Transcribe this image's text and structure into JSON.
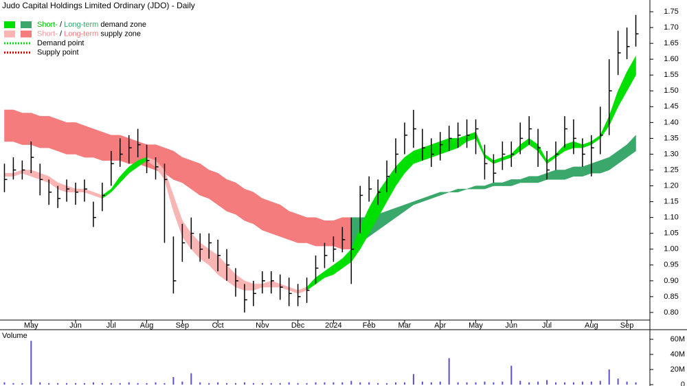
{
  "chart_data": {
    "type": "ohlc",
    "title": "Judo Capital Holdings Limited Ordinary (JDO) - Daily",
    "categories": [
      null,
      null,
      null,
      "May",
      null,
      null,
      null,
      null,
      "Jun",
      null,
      null,
      null,
      "Jul",
      null,
      null,
      null,
      "Aug",
      null,
      null,
      null,
      "Sep",
      null,
      null,
      null,
      "Oct",
      null,
      null,
      null,
      null,
      "Nov",
      null,
      null,
      null,
      "Dec",
      null,
      null,
      null,
      "2024",
      null,
      null,
      null,
      "Feb",
      null,
      null,
      null,
      "Mar",
      null,
      null,
      null,
      "Apr",
      null,
      null,
      null,
      "May",
      null,
      null,
      null,
      "Jun",
      null,
      null,
      null,
      "Jul",
      null,
      null,
      null,
      null,
      "Aug",
      null,
      null,
      null,
      "Sep",
      null
    ],
    "close": [
      1.22,
      1.25,
      1.25,
      1.29,
      1.22,
      1.18,
      1.16,
      1.19,
      1.18,
      1.19,
      1.1,
      1.17,
      1.27,
      1.3,
      1.32,
      1.33,
      1.28,
      1.26,
      1.22,
      0.9,
      1.02,
      1.05,
      1.0,
      1.02,
      0.98,
      0.95,
      0.9,
      0.84,
      0.86,
      0.9,
      0.9,
      0.88,
      0.86,
      0.85,
      0.87,
      0.94,
      0.98,
      1.0,
      1.03,
      1.0,
      1.17,
      1.19,
      1.18,
      1.23,
      1.3,
      1.36,
      1.38,
      1.32,
      1.3,
      1.33,
      1.35,
      1.36,
      1.36,
      1.38,
      1.27,
      1.24,
      1.3,
      1.3,
      1.35,
      1.38,
      1.32,
      1.25,
      1.3,
      1.38,
      1.35,
      1.3,
      1.32,
      1.36,
      1.5,
      1.62,
      1.64,
      1.68
    ],
    "high": [
      1.27,
      1.29,
      1.28,
      1.34,
      1.27,
      1.22,
      1.2,
      1.22,
      1.21,
      1.22,
      1.15,
      1.21,
      1.31,
      1.35,
      1.36,
      1.38,
      1.33,
      1.29,
      1.27,
      1.04,
      1.08,
      1.1,
      1.05,
      1.05,
      1.03,
      1.0,
      0.94,
      0.89,
      0.9,
      0.93,
      0.93,
      0.92,
      0.91,
      0.89,
      0.91,
      0.98,
      1.02,
      1.04,
      1.07,
      1.1,
      1.2,
      1.23,
      1.22,
      1.28,
      1.35,
      1.4,
      1.44,
      1.38,
      1.35,
      1.37,
      1.39,
      1.4,
      1.41,
      1.41,
      1.33,
      1.3,
      1.34,
      1.34,
      1.4,
      1.42,
      1.38,
      1.31,
      1.34,
      1.42,
      1.41,
      1.35,
      1.36,
      1.45,
      1.6,
      1.69,
      1.7,
      1.74
    ],
    "low": [
      1.18,
      1.22,
      1.22,
      1.24,
      1.17,
      1.14,
      1.13,
      1.15,
      1.14,
      1.15,
      1.07,
      1.12,
      1.2,
      1.26,
      1.27,
      1.29,
      1.24,
      1.22,
      1.02,
      0.86,
      0.96,
      1.0,
      0.96,
      0.97,
      0.93,
      0.9,
      0.85,
      0.8,
      0.82,
      0.86,
      0.86,
      0.84,
      0.82,
      0.82,
      0.83,
      0.89,
      0.94,
      0.96,
      0.99,
      0.89,
      1.05,
      1.15,
      1.14,
      1.18,
      1.24,
      1.3,
      1.32,
      1.28,
      1.26,
      1.28,
      1.31,
      1.32,
      1.32,
      1.3,
      1.22,
      1.21,
      1.25,
      1.26,
      1.3,
      1.33,
      1.26,
      1.22,
      1.25,
      1.32,
      1.3,
      1.26,
      1.23,
      1.3,
      1.36,
      1.55,
      1.6,
      1.64
    ],
    "bar_color": "#000000",
    "zones": [
      {
        "color": "#f47c7c",
        "upper": [
          1.44,
          1.44,
          1.43,
          1.43,
          1.42,
          1.42,
          1.41,
          1.4,
          1.4,
          1.39,
          1.38,
          1.37,
          1.36,
          1.36,
          1.35,
          1.34,
          1.33,
          1.33,
          1.32,
          1.31,
          1.29,
          1.28,
          1.27,
          1.25,
          1.24,
          1.22,
          1.21,
          1.19,
          1.18,
          1.16,
          1.15,
          1.14,
          1.12,
          1.11,
          1.1,
          1.1,
          1.09,
          1.09,
          1.1,
          1.1,
          null,
          null,
          null,
          null,
          null,
          null,
          null,
          null,
          null,
          null,
          null,
          null,
          null,
          null,
          null,
          null,
          null,
          null,
          null,
          null,
          null,
          null,
          null,
          null,
          null,
          null,
          null,
          null,
          null,
          null,
          null,
          null
        ],
        "lower": [
          1.34,
          1.34,
          1.33,
          1.33,
          1.32,
          1.32,
          1.31,
          1.3,
          1.3,
          1.29,
          1.29,
          1.28,
          1.28,
          1.28,
          1.27,
          1.27,
          1.26,
          1.25,
          1.24,
          1.22,
          1.21,
          1.19,
          1.17,
          1.16,
          1.14,
          1.12,
          1.11,
          1.09,
          1.08,
          1.06,
          1.05,
          1.04,
          1.03,
          1.02,
          1.02,
          1.01,
          1.01,
          1.01,
          1.0,
          1.0,
          null,
          null,
          null,
          null,
          null,
          null,
          null,
          null,
          null,
          null,
          null,
          null,
          null,
          null,
          null,
          null,
          null,
          null,
          null,
          null,
          null,
          null,
          null,
          null,
          null,
          null,
          null,
          null,
          null,
          null,
          null,
          null
        ]
      },
      {
        "color": "#3aa86a",
        "upper": [
          null,
          null,
          null,
          null,
          null,
          null,
          null,
          null,
          null,
          null,
          null,
          null,
          null,
          null,
          null,
          null,
          null,
          null,
          null,
          null,
          null,
          null,
          null,
          null,
          null,
          null,
          null,
          null,
          null,
          null,
          null,
          null,
          null,
          null,
          null,
          null,
          null,
          null,
          null,
          1.1,
          1.1,
          1.1,
          1.11,
          1.12,
          1.13,
          1.14,
          1.15,
          1.16,
          1.17,
          1.18,
          1.18,
          1.19,
          1.19,
          1.2,
          1.2,
          1.21,
          1.21,
          1.22,
          1.22,
          1.23,
          1.23,
          1.24,
          1.25,
          1.25,
          1.26,
          1.26,
          1.27,
          1.28,
          1.29,
          1.31,
          1.33,
          1.36
        ],
        "lower": [
          null,
          null,
          null,
          null,
          null,
          null,
          null,
          null,
          null,
          null,
          null,
          null,
          null,
          null,
          null,
          null,
          null,
          null,
          null,
          null,
          null,
          null,
          null,
          null,
          null,
          null,
          null,
          null,
          null,
          null,
          null,
          null,
          null,
          null,
          null,
          null,
          null,
          null,
          null,
          1.0,
          1.02,
          1.04,
          1.06,
          1.08,
          1.1,
          1.12,
          1.14,
          1.15,
          1.16,
          1.17,
          1.18,
          1.18,
          1.19,
          1.19,
          1.19,
          1.2,
          1.2,
          1.2,
          1.21,
          1.21,
          1.21,
          1.22,
          1.22,
          1.22,
          1.23,
          1.23,
          1.24,
          1.24,
          1.25,
          1.27,
          1.29,
          1.31
        ]
      },
      {
        "color": "#f9b4b4",
        "upper": [
          1.24,
          1.24,
          1.25,
          1.25,
          1.24,
          1.23,
          1.21,
          1.2,
          1.19,
          1.19,
          1.18,
          1.17,
          null,
          null,
          null,
          null,
          1.29,
          1.28,
          1.25,
          1.17,
          1.09,
          1.05,
          1.02,
          1.0,
          0.98,
          0.95,
          0.92,
          0.9,
          0.89,
          0.89,
          0.9,
          0.89,
          0.88,
          0.87,
          0.88,
          null,
          null,
          null,
          null,
          null,
          null,
          null,
          null,
          null,
          null,
          null,
          null,
          null,
          null,
          null,
          null,
          null,
          null,
          null,
          null,
          null,
          null,
          null,
          null,
          null,
          null,
          null,
          null,
          null,
          null,
          null,
          null,
          null,
          null,
          null,
          null,
          null
        ],
        "lower": [
          1.23,
          1.23,
          1.24,
          1.23,
          1.22,
          1.21,
          1.19,
          1.18,
          1.18,
          1.18,
          1.17,
          1.16,
          null,
          null,
          null,
          null,
          1.28,
          1.26,
          1.22,
          1.12,
          1.04,
          1.0,
          0.97,
          0.95,
          0.92,
          0.9,
          0.88,
          0.87,
          0.87,
          0.88,
          0.88,
          0.88,
          0.87,
          0.86,
          0.87,
          null,
          null,
          null,
          null,
          null,
          null,
          null,
          null,
          null,
          null,
          null,
          null,
          null,
          null,
          null,
          null,
          null,
          null,
          null,
          null,
          null,
          null,
          null,
          null,
          null,
          null,
          null,
          null,
          null,
          null,
          null,
          null,
          null,
          null,
          null,
          null,
          null
        ]
      },
      {
        "color": "#00e000",
        "upper": [
          null,
          null,
          null,
          null,
          null,
          null,
          null,
          null,
          null,
          null,
          null,
          1.17,
          1.19,
          1.23,
          1.26,
          1.28,
          1.29,
          null,
          null,
          null,
          null,
          null,
          null,
          null,
          null,
          null,
          null,
          null,
          null,
          null,
          null,
          null,
          null,
          null,
          0.88,
          0.91,
          0.93,
          0.95,
          0.97,
          1.0,
          1.07,
          1.13,
          1.18,
          1.22,
          1.26,
          1.29,
          1.31,
          1.32,
          1.33,
          1.34,
          1.35,
          1.35,
          1.36,
          1.37,
          1.3,
          1.28,
          1.29,
          1.3,
          1.33,
          1.35,
          1.33,
          1.28,
          1.3,
          1.33,
          1.34,
          1.33,
          1.34,
          1.36,
          1.42,
          1.5,
          1.56,
          1.61
        ],
        "lower": [
          null,
          null,
          null,
          null,
          null,
          null,
          null,
          null,
          null,
          null,
          null,
          1.16,
          1.18,
          1.21,
          1.24,
          1.26,
          1.28,
          null,
          null,
          null,
          null,
          null,
          null,
          null,
          null,
          null,
          null,
          null,
          null,
          null,
          null,
          null,
          null,
          null,
          0.87,
          0.89,
          0.91,
          0.92,
          0.94,
          0.96,
          1.0,
          1.05,
          1.1,
          1.15,
          1.2,
          1.24,
          1.27,
          1.28,
          1.29,
          1.3,
          1.31,
          1.32,
          1.34,
          1.35,
          1.29,
          1.27,
          1.28,
          1.29,
          1.31,
          1.33,
          1.31,
          1.27,
          1.29,
          1.31,
          1.32,
          1.32,
          1.33,
          1.35,
          1.39,
          1.45,
          1.5,
          1.55
        ]
      }
    ],
    "legend": [
      {
        "style": "box",
        "swatches": [
          "#00e000",
          "#3aa86a"
        ],
        "parts": [
          "Short-",
          " / ",
          "Long-term",
          " demand zone"
        ],
        "part_colors": [
          "#00c000",
          "#000000",
          "#3aa86a",
          "#000000"
        ]
      },
      {
        "style": "box",
        "swatches": [
          "#f9b4b4",
          "#f47c7c"
        ],
        "parts": [
          "Short-",
          " / ",
          "Long-term",
          " supply zone"
        ],
        "part_colors": [
          "#f49a9a",
          "#000000",
          "#f47c7c",
          "#000000"
        ]
      },
      {
        "style": "dots",
        "swatches": [
          "#00e000"
        ],
        "parts": [
          "Demand point"
        ],
        "part_colors": [
          "#000000"
        ]
      },
      {
        "style": "dots",
        "swatches": [
          "#e00000"
        ],
        "parts": [
          "Supply point"
        ],
        "part_colors": [
          "#000000"
        ]
      }
    ],
    "ylim": [
      0.776,
      1.787
    ],
    "yticks": [
      {
        "value": 0.8,
        "label": "0.80"
      },
      {
        "value": 0.85,
        "label": "0.85"
      },
      {
        "value": 0.9,
        "label": "0.90"
      },
      {
        "value": 0.95,
        "label": "0.95"
      },
      {
        "value": 1.0,
        "label": "1.00"
      },
      {
        "value": 1.05,
        "label": "1.05"
      },
      {
        "value": 1.1,
        "label": "1.10"
      },
      {
        "value": 1.15,
        "label": "1.15"
      },
      {
        "value": 1.2,
        "label": "1.20"
      },
      {
        "value": 1.25,
        "label": "1.25"
      },
      {
        "value": 1.3,
        "label": "1.30"
      },
      {
        "value": 1.35,
        "label": "1.35"
      },
      {
        "value": 1.4,
        "label": "1.40"
      },
      {
        "value": 1.45,
        "label": "1.45"
      },
      {
        "value": 1.5,
        "label": "1.50"
      },
      {
        "value": 1.55,
        "label": "1.55"
      },
      {
        "value": 1.6,
        "label": "1.60"
      },
      {
        "value": 1.65,
        "label": "1.65"
      },
      {
        "value": 1.7,
        "label": "1.70"
      },
      {
        "value": 1.75,
        "label": "1.75"
      }
    ],
    "volume": {
      "label": "Volume",
      "color": "#5a4fcf",
      "values": [
        3,
        2,
        2,
        58,
        3,
        2,
        2,
        2,
        2,
        2,
        3,
        2,
        2,
        2,
        3,
        2,
        2,
        3,
        2,
        10,
        4,
        15,
        3,
        2,
        3,
        2,
        2,
        3,
        2,
        2,
        2,
        2,
        3,
        2,
        2,
        3,
        3,
        3,
        3,
        5,
        3,
        3,
        2,
        2,
        3,
        3,
        14,
        4,
        3,
        4,
        35,
        3,
        3,
        3,
        4,
        3,
        4,
        25,
        5,
        3,
        4,
        6,
        3,
        3,
        3,
        4,
        4,
        5,
        20,
        8,
        4,
        3
      ],
      "ylim": [
        0,
        70
      ],
      "yticks": [
        0,
        {
          "value": 20,
          "label": "20M"
        },
        {
          "value": 40,
          "label": "40M"
        },
        {
          "value": 60,
          "label": "60M"
        }
      ]
    }
  }
}
